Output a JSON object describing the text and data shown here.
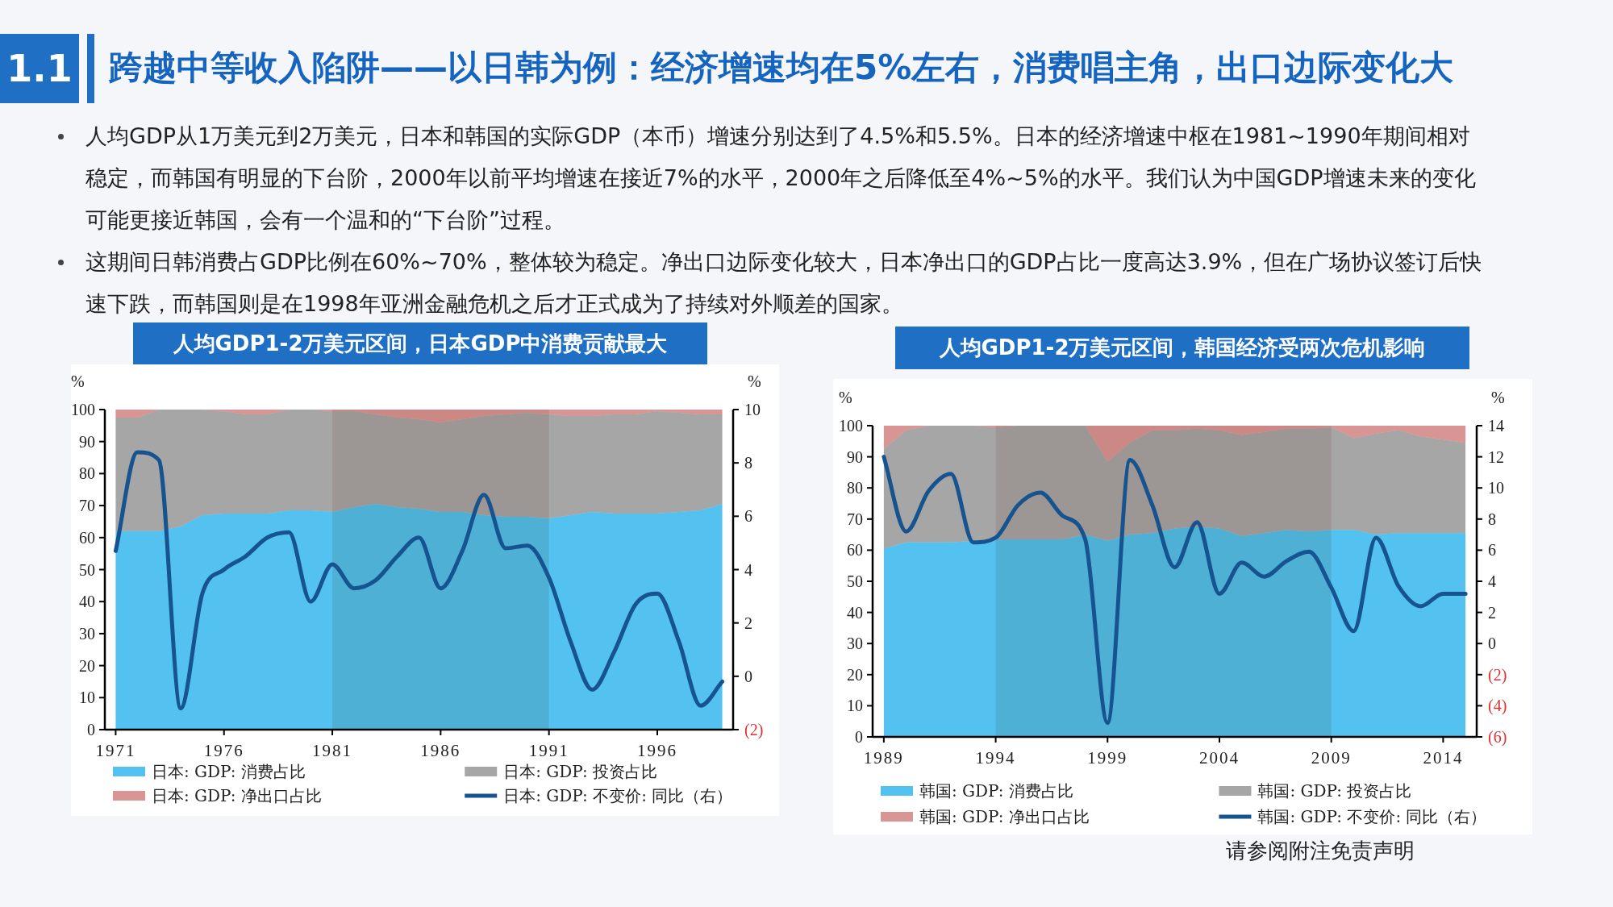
{
  "chart_data": [
    {
      "type": "other",
      "title": "跨越中等收入陷阱——以日韩为例：经济增速均在5%左右，消费唱主角，出口边际变化大",
      "annotations": [
        "1.1",
        "人均GDP从1万美元到2万美元，日本和韩国的实际GDP（本币）增速分别达到了4.5%和5.5%。日本的经济增速中枢在1981~1990年期间相对稳定，而韩国有明显的下台阶，2000年以前平均增速在接近7%的水平，2000年之后降低至4%~5%的水平。我们认为中国GDP增速未来的变化可能更接近韩国，会有一个温和的“下台阶”过程。",
        "这期间日韩消费占GDP比例在60%~70%，整体较为稳定。净出口边际变化较大，日本净出口的GDP占比一度高达3.9%，但在广场协议签订后快速下跌，而韩国则是在1998年亚洲金融危机之后才正式成为了持续对外顺差的国家。",
        "请参阅附注免责声明"
      ]
    },
    {
      "type": "area",
      "title": "人均GDP1-2万美元区间，日本GDP中消费贡献最大",
      "ylabel": "%",
      "y2label": "%",
      "stacked": true,
      "legend": "bottom",
      "x": [
        1971,
        1972,
        1973,
        1974,
        1975,
        1976,
        1977,
        1978,
        1979,
        1980,
        1981,
        1982,
        1983,
        1984,
        1985,
        1986,
        1987,
        1988,
        1989,
        1990,
        1991,
        1992,
        1993,
        1994,
        1995,
        1996,
        1997,
        1998,
        1999
      ],
      "xlim": [
        1970.5,
        1999.5
      ],
      "xticks": [
        1971,
        1976,
        1981,
        1986,
        1991,
        1996
      ],
      "ylim": [
        0,
        100
      ],
      "yticks": [
        0,
        10,
        20,
        30,
        40,
        50,
        60,
        70,
        80,
        90,
        100
      ],
      "y2lim": [
        -2,
        10
      ],
      "y2ticks": [
        {
          "value": -2,
          "label": "(2)"
        },
        0,
        2,
        4,
        6,
        8,
        10
      ],
      "bands": [
        {
          "axis": "x",
          "from": 1981,
          "to": 1991,
          "color": "#f0e8e4"
        }
      ],
      "series": [
        {
          "name": "日本: GDP: 消费占比",
          "color": "#54c2f0",
          "values": [
            62,
            62,
            62,
            63.5,
            67,
            67.5,
            67.5,
            67.5,
            68.5,
            68.5,
            68,
            69.5,
            70.5,
            69.5,
            69,
            68,
            68,
            67,
            66.5,
            66.5,
            66,
            67,
            68,
            67.5,
            67.5,
            67.5,
            68,
            68.5,
            70.5
          ]
        },
        {
          "name": "日本: GDP: 投资占比",
          "color": "#a6a6a6",
          "values": [
            35.5,
            35.5,
            38,
            36.5,
            33,
            32,
            31,
            31,
            31.5,
            31.5,
            31.5,
            30,
            28,
            28,
            28,
            28,
            29,
            31,
            32,
            32.5,
            32.5,
            31,
            30,
            31,
            31,
            32,
            31,
            30,
            28
          ]
        },
        {
          "name": "日本: GDP: 净出口占比",
          "color": "#d99594",
          "values": [
            2.5,
            2.5,
            0,
            0,
            0,
            0.5,
            1.5,
            1.5,
            0,
            0,
            0.5,
            0.5,
            1.5,
            2.5,
            3,
            4,
            3,
            2,
            1.5,
            1,
            1.5,
            2,
            2,
            1.5,
            1.5,
            0.5,
            1,
            1.5,
            1.5
          ]
        },
        {
          "name": "日本: GDP: 不变价: 同比（右）",
          "type": "line",
          "axis": "y2",
          "color": "#17548f",
          "values": [
            4.7,
            8.4,
            8.1,
            -1.2,
            3.1,
            4.0,
            4.5,
            5.2,
            5.4,
            2.8,
            4.2,
            3.3,
            3.6,
            4.5,
            5.2,
            3.3,
            4.7,
            6.8,
            4.8,
            4.9,
            3.7,
            1.3,
            -0.5,
            0.9,
            2.7,
            3.1,
            1.3,
            -1.1,
            -0.2
          ]
        }
      ]
    },
    {
      "type": "area",
      "title": "人均GDP1-2万美元区间，韩国经济受两次危机影响",
      "ylabel": "%",
      "y2label": "%",
      "stacked": true,
      "legend": "bottom",
      "x": [
        1989,
        1990,
        1991,
        1992,
        1993,
        1994,
        1995,
        1996,
        1997,
        1998,
        1999,
        2000,
        2001,
        2002,
        2003,
        2004,
        2005,
        2006,
        2007,
        2008,
        2009,
        2010,
        2011,
        2012,
        2013,
        2014,
        2015
      ],
      "xlim": [
        1988.5,
        2015.5
      ],
      "xticks": [
        1989,
        1994,
        1999,
        2004,
        2009,
        2014
      ],
      "ylim": [
        0,
        100
      ],
      "yticks": [
        0,
        10,
        20,
        30,
        40,
        50,
        60,
        70,
        80,
        90,
        100
      ],
      "y2lim": [
        -6,
        14
      ],
      "y2ticks": [
        {
          "value": -6,
          "label": "(6)"
        },
        {
          "value": -4,
          "label": "(4)"
        },
        {
          "value": -2,
          "label": "(2)"
        },
        0,
        2,
        4,
        6,
        8,
        10,
        12,
        14
      ],
      "bands": [
        {
          "axis": "x",
          "from": 1994,
          "to": 2009,
          "color": "#f0e8e4"
        }
      ],
      "series": [
        {
          "name": "韩国: GDP: 消费占比",
          "color": "#54c2f0",
          "values": [
            60.5,
            62.5,
            62.5,
            62.5,
            63,
            63.5,
            63.5,
            63.5,
            63.5,
            65,
            63,
            65,
            65.5,
            67,
            67.5,
            67,
            64.5,
            65.5,
            66.5,
            66,
            66.5,
            66.5,
            65,
            65.5,
            65.5,
            65.5,
            65.5
          ]
        },
        {
          "name": "韩国: GDP: 投资占比",
          "color": "#a6a6a6",
          "values": [
            32,
            36,
            37.5,
            37.5,
            37,
            36,
            36.5,
            36.5,
            36.5,
            35,
            25.5,
            29.5,
            33,
            31.5,
            31.5,
            31.5,
            32.5,
            32.5,
            32.5,
            33,
            33,
            29.5,
            32.5,
            33,
            31,
            30,
            29
          ]
        },
        {
          "name": "韩国: GDP: 净出口占比",
          "color": "#d99594",
          "values": [
            7.5,
            1.5,
            0,
            0,
            0,
            0.5,
            0,
            0,
            0,
            0,
            11.5,
            5.5,
            1.5,
            1.5,
            1,
            1.5,
            3,
            2,
            1,
            1,
            0.5,
            4,
            2.5,
            1.5,
            3.5,
            4.5,
            5.5
          ]
        },
        {
          "name": "韩国: GDP: 不变价: 同比（右）",
          "type": "line",
          "axis": "y2",
          "color": "#17548f",
          "values": [
            12.0,
            7.2,
            9.8,
            10.9,
            6.5,
            6.8,
            8.9,
            9.7,
            8.2,
            6.7,
            -5.1,
            11.8,
            8.9,
            4.9,
            7.8,
            3.2,
            5.2,
            4.3,
            5.3,
            5.9,
            3.6,
            0.8,
            6.8,
            3.7,
            2.4,
            3.2,
            3.2
          ]
        }
      ]
    }
  ]
}
